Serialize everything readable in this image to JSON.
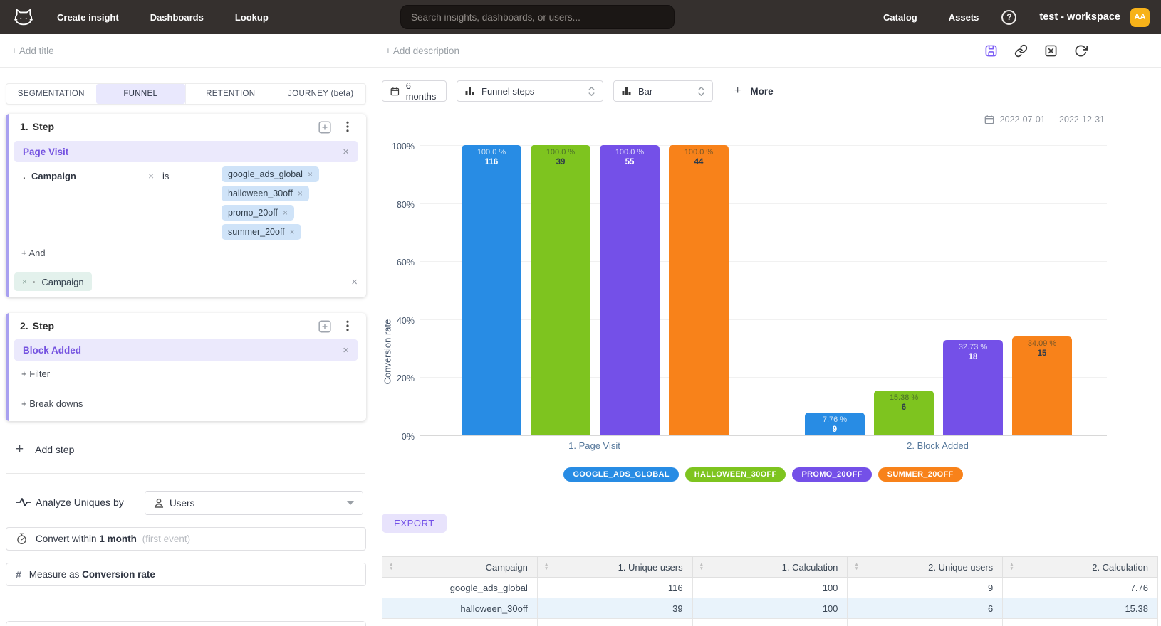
{
  "symbols": {
    "plus": "+",
    "close": "×",
    "bullet": "·",
    "hash": "#",
    "help": "?",
    "sort_asc": "▲",
    "sort_desc": "▼"
  },
  "topnav": {
    "items": [
      "Create insight",
      "Dashboards",
      "Lookup"
    ],
    "search": {
      "placeholder": "Search insights, dashboards, or users..."
    },
    "right_items": [
      "Catalog",
      "Assets"
    ],
    "workspace_name": "test - workspace",
    "avatar_initials": "AA",
    "colors": {
      "bar_bg": "#35302e",
      "avatar_bg": "#f7b219"
    }
  },
  "insight_header": {
    "add_title": "+ Add title",
    "add_description": "+ Add description",
    "icons": [
      "save-icon",
      "link-icon",
      "close-square-icon",
      "refresh-icon"
    ]
  },
  "builder": {
    "tabs": [
      {
        "label": "SEGMENTATION",
        "active": false
      },
      {
        "label": "FUNNEL",
        "active": true
      },
      {
        "label": "RETENTION",
        "active": false
      },
      {
        "label": "JOURNEY (beta)",
        "active": false
      }
    ],
    "step1": {
      "number": "1.",
      "title": "Step",
      "event": "Page Visit",
      "filter": {
        "property": "Campaign",
        "operator": "is",
        "values": [
          "google_ads_global",
          "halloween_30off",
          "promo_20off",
          "summer_20off"
        ]
      },
      "and_label": "+ And",
      "breakdown": {
        "property": "Campaign"
      }
    },
    "step2": {
      "number": "2.",
      "title": "Step",
      "event": "Block Added",
      "filter_label": "+ Filter",
      "breakdowns_label": "+ Break downs"
    },
    "add_step_label": "Add step",
    "analyze": {
      "label": "Analyze Uniques by",
      "value": "Users"
    },
    "convert": {
      "prefix": "Convert within",
      "value": "1 month",
      "hint": "(first event)"
    },
    "measure": {
      "prefix": "Measure as",
      "value": "Conversion rate"
    }
  },
  "toolbar": {
    "date_preset": "6 months",
    "view_select": "Funnel steps",
    "type_select": "Bar",
    "more": "More",
    "date_range": "2022-07-01 — 2022-12-31"
  },
  "chart_data": {
    "type": "bar",
    "title": "",
    "ylabel": "Conversion rate",
    "ylim": [
      0,
      100
    ],
    "yticks": [
      0,
      20,
      40,
      60,
      80,
      100
    ],
    "grid": true,
    "legend_position": "bottom",
    "categories": [
      "1. Page Visit",
      "2. Block Added"
    ],
    "series": [
      {
        "name": "GOOGLE_ADS_GLOBAL",
        "color": "#288ce4",
        "values": [
          100.0,
          7.76
        ],
        "counts": [
          116,
          9
        ],
        "pct_labels": [
          "100.0 %",
          "7.76 %"
        ],
        "light_text": true
      },
      {
        "name": "HALLOWEEN_30OFF",
        "color": "#7ec41f",
        "values": [
          100.0,
          15.38
        ],
        "counts": [
          39,
          6
        ],
        "pct_labels": [
          "100.0 %",
          "15.38 %"
        ],
        "light_text": false
      },
      {
        "name": "PROMO_20OFF",
        "color": "#7450e8",
        "values": [
          100.0,
          32.73
        ],
        "counts": [
          55,
          18
        ],
        "pct_labels": [
          "100.0 %",
          "32.73 %"
        ],
        "light_text": true
      },
      {
        "name": "SUMMER_20OFF",
        "color": "#f8821a",
        "values": [
          100.0,
          34.09
        ],
        "counts": [
          44,
          15
        ],
        "pct_labels": [
          "100.0 %",
          "34.09 %"
        ],
        "light_text": false
      }
    ]
  },
  "export_label": "EXPORT",
  "table": {
    "columns": [
      "Campaign",
      "1. Unique users",
      "1. Calculation",
      "2. Unique users",
      "2. Calculation"
    ],
    "rows": [
      {
        "cells": [
          "google_ads_global",
          "116",
          "100",
          "9",
          "7.76"
        ],
        "highlight": false
      },
      {
        "cells": [
          "halloween_30off",
          "39",
          "100",
          "6",
          "15.38"
        ],
        "highlight": true
      }
    ]
  }
}
